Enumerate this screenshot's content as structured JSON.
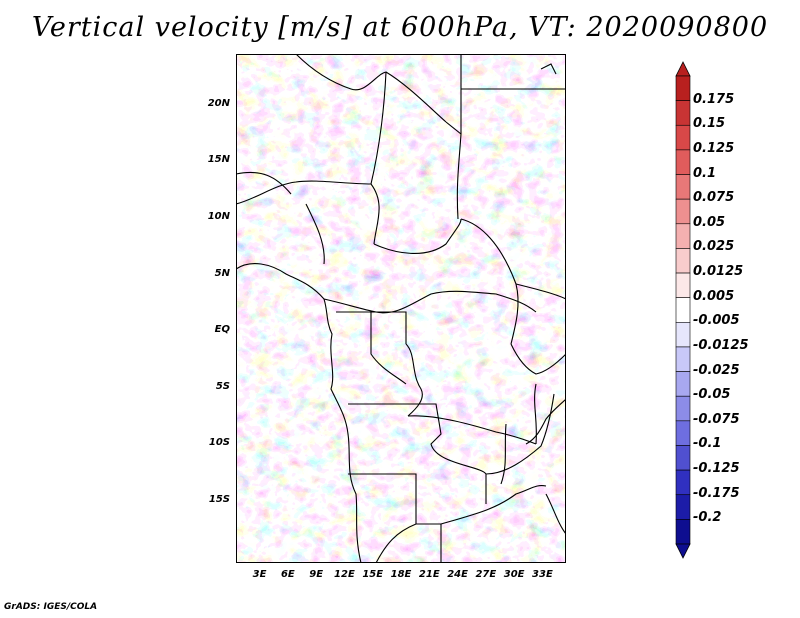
{
  "title": "Vertical velocity [m/s] at 600hPa, VT: 2020090800",
  "footer": "GrADS: IGES/COLA",
  "map": {
    "lat_labels": [
      "20N",
      "15N",
      "10N",
      "5N",
      "EQ",
      "5S",
      "10S",
      "15S"
    ],
    "lat_values": [
      20,
      15,
      10,
      5,
      0,
      -5,
      -10,
      -15
    ],
    "lon_labels": [
      "3E",
      "6E",
      "9E",
      "12E",
      "15E",
      "18E",
      "21E",
      "24E",
      "27E",
      "30E",
      "33E"
    ],
    "lon_values": [
      3,
      6,
      9,
      12,
      15,
      18,
      21,
      24,
      27,
      30,
      33
    ],
    "lat_range": [
      -20.5,
      24.5
    ],
    "lon_range": [
      0.5,
      35.5
    ]
  },
  "colorbar": {
    "labels": [
      "0.175",
      "0.15",
      "0.125",
      "0.1",
      "0.075",
      "0.05",
      "0.025",
      "0.0125",
      "0.005",
      "-0.005",
      "-0.0125",
      "-0.025",
      "-0.05",
      "-0.075",
      "-0.1",
      "-0.125",
      "-0.175",
      "-0.2"
    ],
    "colors": [
      "#b8201f",
      "#c83434",
      "#d84848",
      "#e05c5c",
      "#e87878",
      "#ee9090",
      "#f4b0b0",
      "#f8cccc",
      "#fce8e8",
      "#ffffff",
      "#e6e6fc",
      "#c8c8f8",
      "#a8a8f0",
      "#8c8ce8",
      "#6e6ee0",
      "#5050d0",
      "#3030c0",
      "#1c1ca8",
      "#0e0e90"
    ]
  }
}
